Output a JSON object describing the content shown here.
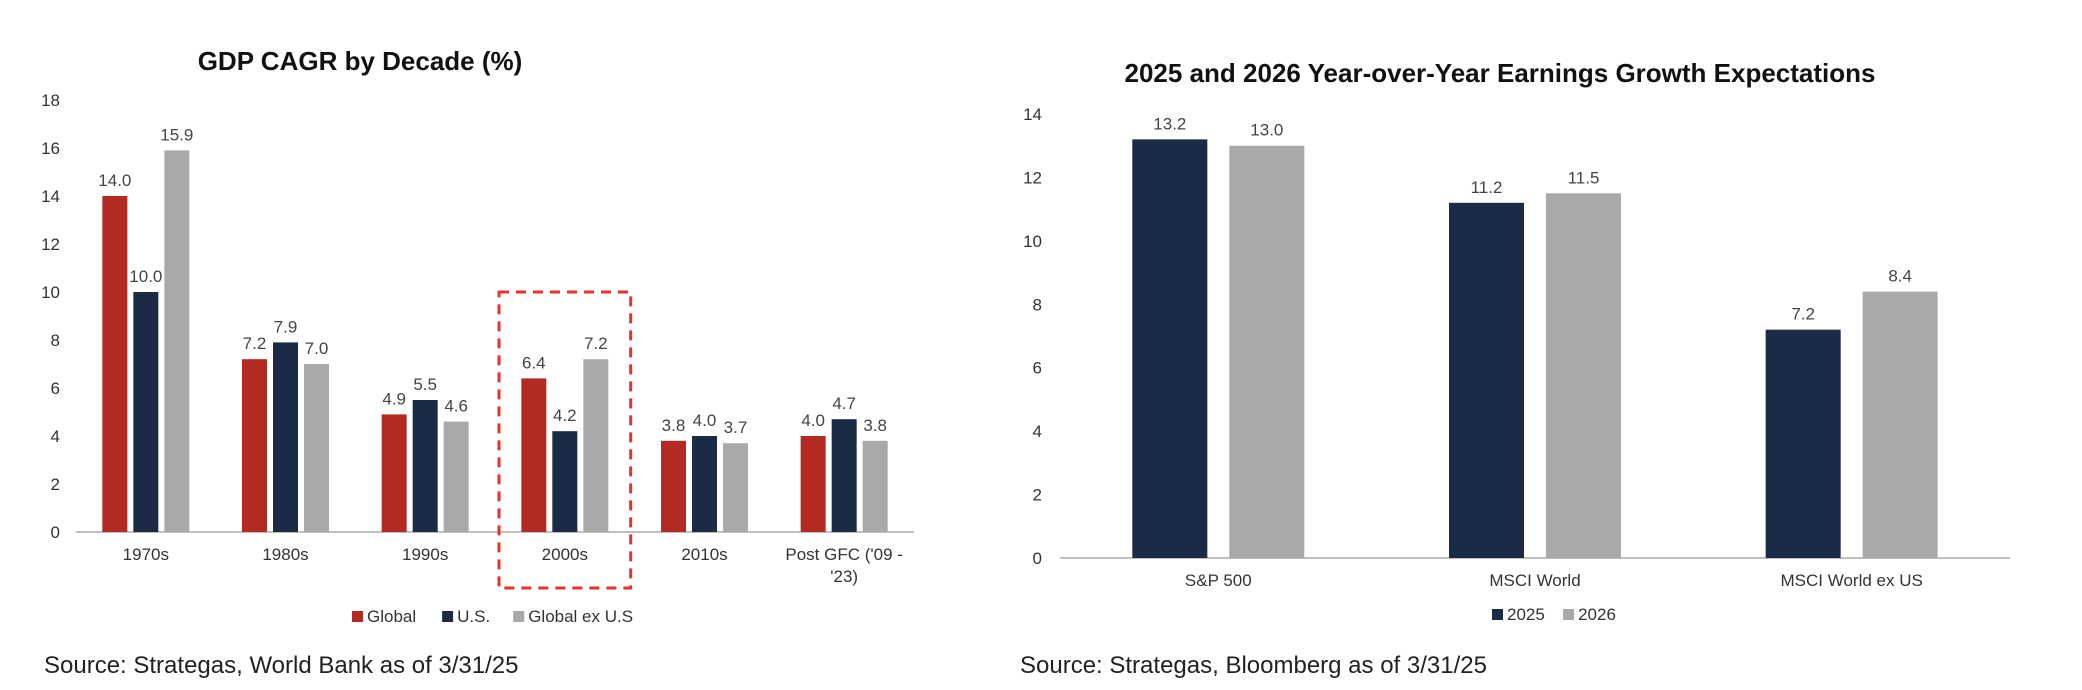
{
  "chart_data": [
    {
      "type": "bar",
      "title": "GDP CAGR by Decade (%)",
      "categories": [
        "1970s",
        "1980s",
        "1990s",
        "2000s",
        "2010s",
        "Post GFC ('09 - '23)"
      ],
      "category_lines": [
        [
          "1970s"
        ],
        [
          "1980s"
        ],
        [
          "1990s"
        ],
        [
          "2000s"
        ],
        [
          "2010s"
        ],
        [
          "Post GFC ('09 -",
          "'23)"
        ]
      ],
      "series": [
        {
          "name": "Global",
          "color": "#b22a22",
          "values": [
            14.0,
            7.2,
            4.9,
            6.4,
            3.8,
            4.0
          ]
        },
        {
          "name": "U.S.",
          "color": "#1b2a45",
          "values": [
            10.0,
            7.9,
            5.5,
            4.2,
            4.0,
            4.7
          ]
        },
        {
          "name": "Global ex U.S",
          "color": "#a9a9a9",
          "values": [
            15.9,
            7.0,
            4.6,
            7.2,
            3.7,
            3.8
          ]
        }
      ],
      "ylim": [
        0,
        18
      ],
      "yticks": [
        "0",
        "2",
        "4",
        "6",
        "8",
        "10",
        "12",
        "14",
        "16",
        "18"
      ],
      "grid": false,
      "legend": "bottom",
      "highlight_category": "2000s",
      "highlight_color": "#e8322d",
      "source": "Source: Strategas, World Bank as of 3/31/25"
    },
    {
      "type": "bar",
      "title": "2025 and 2026 Year-over-Year Earnings Growth Expectations",
      "categories": [
        "S&P 500",
        "MSCI World",
        "MSCI World ex US"
      ],
      "series": [
        {
          "name": "2025",
          "color": "#1b2a45",
          "values": [
            13.2,
            11.2,
            7.2
          ]
        },
        {
          "name": "2026",
          "color": "#a9a9a9",
          "values": [
            13.0,
            11.5,
            8.4
          ]
        }
      ],
      "ylim": [
        0,
        14
      ],
      "yticks": [
        "0",
        "2",
        "4",
        "6",
        "8",
        "10",
        "12",
        "14"
      ],
      "grid": false,
      "legend": "bottom",
      "source": "Source: Strategas, Bloomberg as of 3/31/25"
    }
  ]
}
